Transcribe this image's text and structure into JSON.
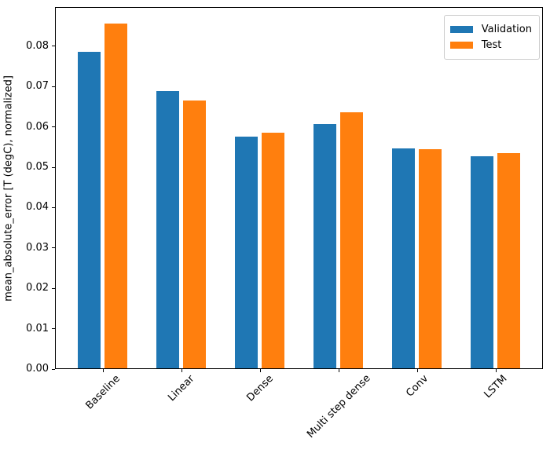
{
  "chart_data": {
    "type": "bar",
    "title": "",
    "xlabel": "",
    "ylabel": "mean_absolute_error [T (degC), normalized]",
    "categories": [
      "Baseline",
      "Linear",
      "Dense",
      "Multi step dense",
      "Conv",
      "LSTM"
    ],
    "series": [
      {
        "name": "Validation",
        "color": "#1f77b4",
        "values": [
          0.0785,
          0.0687,
          0.0574,
          0.0606,
          0.0545,
          0.0526
        ]
      },
      {
        "name": "Test",
        "color": "#ff7f0e",
        "values": [
          0.0854,
          0.0663,
          0.0584,
          0.0634,
          0.0543,
          0.0533
        ]
      }
    ],
    "ylim": [
      0,
      0.0897
    ],
    "ytick_values": [
      0.0,
      0.01,
      0.02,
      0.03,
      0.04,
      0.05,
      0.06,
      0.07,
      0.08
    ],
    "ytick_labels": [
      "0.00",
      "0.01",
      "0.02",
      "0.03",
      "0.04",
      "0.05",
      "0.06",
      "0.07",
      "0.08"
    ],
    "x_tick_rotation": 45,
    "grid": false,
    "legend_position": "upper right",
    "spine_color": "#000000",
    "background_color": "#ffffff"
  }
}
